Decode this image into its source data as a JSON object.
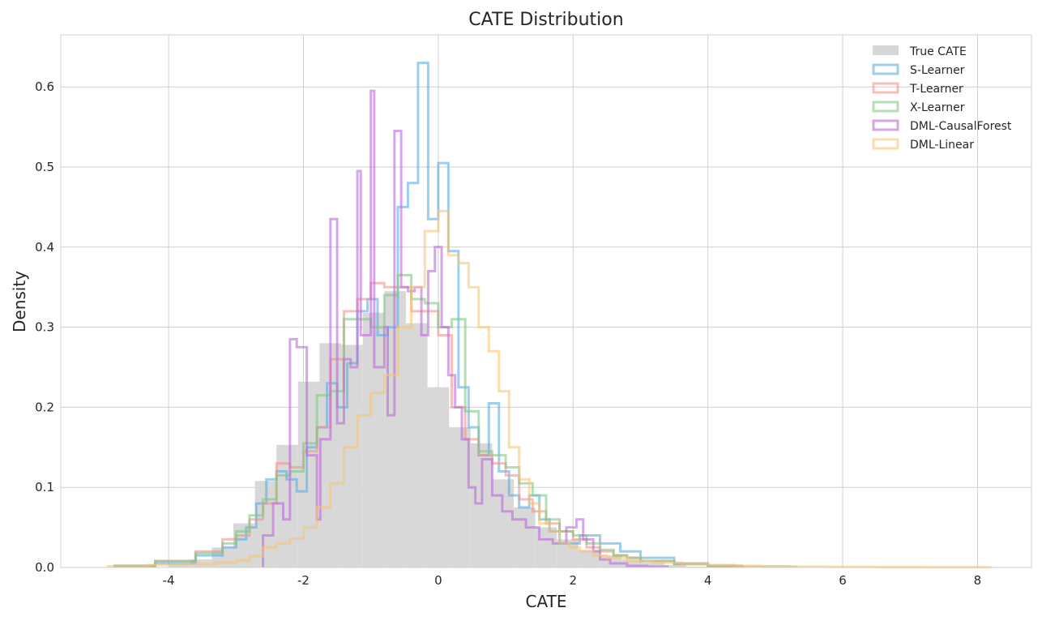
{
  "chart_data": {
    "type": "histogram",
    "title": "CATE Distribution",
    "xlabel": "CATE",
    "ylabel": "Density",
    "xlim": [
      -5.6,
      8.8
    ],
    "ylim": [
      0,
      0.665
    ],
    "xticks": [
      -4,
      -2,
      0,
      2,
      4,
      6,
      8
    ],
    "xtick_labels": [
      "-4",
      "-2",
      "0",
      "2",
      "4",
      "6",
      "8"
    ],
    "yticks": [
      0.0,
      0.1,
      0.2,
      0.3,
      0.4,
      0.5,
      0.6
    ],
    "ytick_labels": [
      "0.0",
      "0.1",
      "0.2",
      "0.3",
      "0.4",
      "0.5",
      "0.6"
    ],
    "grid": true,
    "legend_position": "upper right",
    "true_cate": {
      "name": "True CATE",
      "color": "#d6d6d6",
      "bin_edges": [
        -4.0,
        -3.68,
        -3.36,
        -3.04,
        -2.72,
        -2.4,
        -2.08,
        -1.76,
        -1.44,
        -1.12,
        -0.8,
        -0.48,
        -0.16,
        0.16,
        0.48,
        0.8,
        1.12,
        1.44,
        1.76,
        2.08,
        2.4,
        2.72,
        3.04,
        3.36,
        3.68,
        4.0
      ],
      "values": [
        0.004,
        0.01,
        0.025,
        0.055,
        0.108,
        0.153,
        0.232,
        0.28,
        0.278,
        0.318,
        0.345,
        0.305,
        0.225,
        0.175,
        0.155,
        0.11,
        0.075,
        0.05,
        0.035,
        0.022,
        0.015,
        0.01,
        0.006,
        0.003,
        0.001
      ]
    },
    "series": [
      {
        "name": "S-Learner",
        "color": "#5dade2",
        "bin_edges": [
          -4.8,
          -4.2,
          -3.6,
          -3.2,
          -3.0,
          -2.85,
          -2.7,
          -2.55,
          -2.4,
          -2.25,
          -2.1,
          -1.95,
          -1.8,
          -1.65,
          -1.5,
          -1.35,
          -1.2,
          -1.05,
          -0.9,
          -0.75,
          -0.6,
          -0.45,
          -0.3,
          -0.15,
          0.0,
          0.15,
          0.3,
          0.45,
          0.6,
          0.75,
          0.9,
          1.05,
          1.2,
          1.35,
          1.5,
          1.65,
          1.8,
          2.1,
          2.4,
          2.7,
          3.0,
          3.5,
          4.0,
          4.5
        ],
        "values": [
          0.002,
          0.005,
          0.015,
          0.025,
          0.035,
          0.05,
          0.08,
          0.11,
          0.12,
          0.11,
          0.095,
          0.15,
          0.175,
          0.23,
          0.2,
          0.255,
          0.32,
          0.335,
          0.29,
          0.3,
          0.45,
          0.48,
          0.63,
          0.435,
          0.505,
          0.395,
          0.225,
          0.175,
          0.14,
          0.205,
          0.12,
          0.09,
          0.075,
          0.09,
          0.06,
          0.045,
          0.03,
          0.04,
          0.03,
          0.02,
          0.012,
          0.005,
          0.002
        ]
      },
      {
        "name": "T-Learner",
        "color": "#f1948a",
        "bin_edges": [
          -4.8,
          -4.2,
          -3.6,
          -3.2,
          -3.0,
          -2.8,
          -2.6,
          -2.4,
          -2.2,
          -2.0,
          -1.8,
          -1.6,
          -1.4,
          -1.2,
          -1.0,
          -0.8,
          -0.6,
          -0.4,
          -0.2,
          0.0,
          0.2,
          0.4,
          0.6,
          0.8,
          1.0,
          1.2,
          1.4,
          1.6,
          1.8,
          2.0,
          2.2,
          2.4,
          2.6,
          2.8,
          3.0,
          3.5,
          4.0,
          4.5
        ],
        "values": [
          0.002,
          0.008,
          0.02,
          0.035,
          0.04,
          0.06,
          0.08,
          0.13,
          0.125,
          0.145,
          0.175,
          0.26,
          0.32,
          0.335,
          0.355,
          0.35,
          0.35,
          0.32,
          0.32,
          0.29,
          0.2,
          0.16,
          0.14,
          0.13,
          0.115,
          0.085,
          0.07,
          0.055,
          0.045,
          0.035,
          0.025,
          0.02,
          0.015,
          0.012,
          0.008,
          0.004,
          0.002
        ]
      },
      {
        "name": "X-Learner",
        "color": "#82c882",
        "bin_edges": [
          -4.8,
          -4.2,
          -3.6,
          -3.2,
          -3.0,
          -2.8,
          -2.6,
          -2.4,
          -2.2,
          -2.0,
          -1.8,
          -1.6,
          -1.4,
          -1.2,
          -1.0,
          -0.8,
          -0.6,
          -0.4,
          -0.2,
          0.0,
          0.2,
          0.4,
          0.6,
          0.8,
          1.0,
          1.2,
          1.4,
          1.6,
          1.8,
          2.0,
          2.2,
          2.4,
          2.6,
          2.8,
          3.0,
          3.5,
          4.0,
          5.3
        ],
        "values": [
          0.002,
          0.008,
          0.018,
          0.03,
          0.045,
          0.065,
          0.085,
          0.115,
          0.12,
          0.155,
          0.215,
          0.22,
          0.31,
          0.31,
          0.3,
          0.34,
          0.365,
          0.335,
          0.33,
          0.3,
          0.31,
          0.195,
          0.145,
          0.14,
          0.125,
          0.105,
          0.09,
          0.06,
          0.045,
          0.04,
          0.03,
          0.022,
          0.015,
          0.012,
          0.008,
          0.004,
          0.001
        ]
      },
      {
        "name": "DML-CausalForest",
        "color": "#bb6bd9",
        "bin_edges": [
          -2.6,
          -2.45,
          -2.3,
          -2.2,
          -2.1,
          -1.95,
          -1.8,
          -1.75,
          -1.6,
          -1.5,
          -1.4,
          -1.3,
          -1.2,
          -1.15,
          -1.0,
          -0.95,
          -0.8,
          -0.75,
          -0.65,
          -0.55,
          -0.45,
          -0.35,
          -0.25,
          -0.15,
          -0.05,
          0.05,
          0.15,
          0.25,
          0.35,
          0.45,
          0.55,
          0.65,
          0.8,
          0.95,
          1.1,
          1.3,
          1.5,
          1.7,
          1.9,
          2.05,
          2.15,
          2.3,
          2.4,
          2.55,
          2.8,
          3.1,
          3.4
        ],
        "values": [
          0.04,
          0.08,
          0.06,
          0.285,
          0.275,
          0.14,
          0.06,
          0.16,
          0.435,
          0.18,
          0.26,
          0.25,
          0.495,
          0.29,
          0.595,
          0.25,
          0.3,
          0.19,
          0.545,
          0.35,
          0.345,
          0.35,
          0.29,
          0.37,
          0.4,
          0.3,
          0.24,
          0.2,
          0.16,
          0.1,
          0.08,
          0.135,
          0.09,
          0.07,
          0.06,
          0.05,
          0.035,
          0.03,
          0.05,
          0.06,
          0.035,
          0.02,
          0.01,
          0.005,
          0.002,
          0.001
        ]
      },
      {
        "name": "DML-Linear",
        "color": "#f8c471",
        "bin_edges": [
          -4.9,
          -4.3,
          -3.8,
          -3.3,
          -3.0,
          -2.8,
          -2.6,
          -2.4,
          -2.2,
          -2.0,
          -1.8,
          -1.6,
          -1.4,
          -1.2,
          -1.0,
          -0.8,
          -0.6,
          -0.4,
          -0.2,
          0.0,
          0.15,
          0.3,
          0.45,
          0.6,
          0.75,
          0.9,
          1.05,
          1.2,
          1.35,
          1.5,
          1.65,
          1.8,
          1.95,
          2.1,
          2.3,
          2.5,
          2.8,
          3.2,
          3.6,
          4.0,
          4.4,
          4.8,
          5.2,
          5.8,
          6.5,
          7.2,
          8.2
        ],
        "values": [
          0.0015,
          0.003,
          0.004,
          0.006,
          0.009,
          0.014,
          0.025,
          0.03,
          0.036,
          0.05,
          0.075,
          0.105,
          0.15,
          0.19,
          0.218,
          0.24,
          0.3,
          0.35,
          0.42,
          0.445,
          0.39,
          0.38,
          0.35,
          0.3,
          0.27,
          0.22,
          0.15,
          0.11,
          0.08,
          0.055,
          0.045,
          0.03,
          0.025,
          0.02,
          0.015,
          0.012,
          0.008,
          0.006,
          0.004,
          0.003,
          0.002,
          0.0015,
          0.001,
          0.0008,
          0.0005,
          0.0003
        ]
      }
    ]
  }
}
